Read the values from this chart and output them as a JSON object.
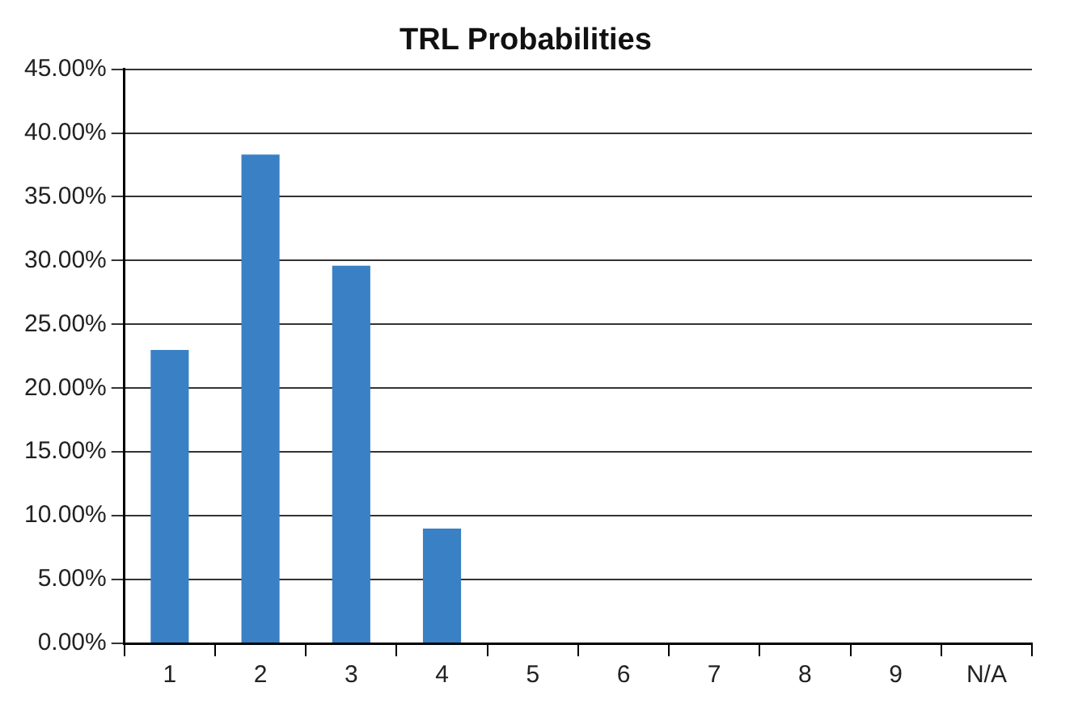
{
  "chart_data": {
    "type": "bar",
    "title": "TRL Probabilities",
    "categories": [
      "1",
      "2",
      "3",
      "4",
      "5",
      "6",
      "7",
      "8",
      "9",
      "N/A"
    ],
    "values": [
      23.0,
      38.3,
      29.6,
      9.0,
      0,
      0,
      0,
      0,
      0,
      0
    ],
    "color": "#3a80c4",
    "ylim": [
      0,
      45
    ],
    "yticks": [
      {
        "value": 0,
        "label": "0.00%"
      },
      {
        "value": 5,
        "label": "5.00%"
      },
      {
        "value": 10,
        "label": "10.00%"
      },
      {
        "value": 15,
        "label": "15.00%"
      },
      {
        "value": 20,
        "label": "20.00%"
      },
      {
        "value": 25,
        "label": "25.00%"
      },
      {
        "value": 30,
        "label": "30.00%"
      },
      {
        "value": 35,
        "label": "35.00%"
      },
      {
        "value": 40,
        "label": "40.00%"
      },
      {
        "value": 45,
        "label": "45.00%"
      }
    ],
    "grid": "y"
  }
}
